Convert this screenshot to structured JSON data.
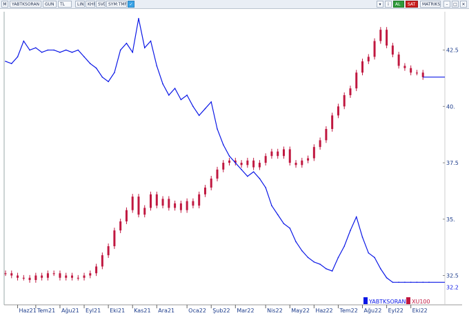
{
  "toolbar": {
    "left_buttons": [
      "M",
      "YABTKSORAN",
      "GUN",
      "TL",
      "LIN",
      "KHN",
      "SVD",
      "SYM:TMP"
    ],
    "right_buttons": [
      "AL",
      "SAT",
      "MATRIKS"
    ]
  },
  "colors": {
    "blue_series": "#0a17e6",
    "red_series": "#c01840",
    "axis_text": "#1a3a8a",
    "grid": "#c9c9c9"
  },
  "chart_data": {
    "type": "line",
    "x_tick_labels": [
      "Haz21",
      "Tem21",
      "Ağu21",
      "Eyl21",
      "Eki21",
      "Kas21",
      "Ara21",
      "Oca22",
      "Şub22",
      "Mar22",
      "Nis22",
      "May22",
      "Haz22",
      "Tem22",
      "Ağu22",
      "Eyl22",
      "Eki22"
    ],
    "y_tick_labels": [
      "32.5",
      "35.",
      "37.5",
      "40.",
      "42.5"
    ],
    "ylim": [
      31.2,
      44.2
    ],
    "last_value_label": "32.2",
    "legend": [
      "YABTKSORAN",
      "XU100"
    ],
    "legend_position": "bottom-right",
    "series": [
      {
        "name": "YABTKSORAN",
        "type": "line",
        "x": [
          0,
          1,
          2,
          3,
          4,
          5,
          6,
          7,
          8,
          9,
          10,
          11,
          12,
          13,
          14,
          15,
          16,
          17,
          18,
          19,
          20,
          21,
          22,
          23,
          24,
          25,
          26,
          27,
          28,
          29,
          30,
          31,
          32,
          33,
          34,
          35,
          36,
          37,
          38,
          39,
          40,
          41,
          42,
          43,
          44,
          45,
          46,
          47,
          48,
          49,
          50,
          51,
          52,
          53,
          54,
          55,
          56,
          57,
          58,
          59,
          60,
          61,
          62,
          63,
          64,
          65,
          66,
          67,
          68,
          69,
          70
        ],
        "values": [
          42.0,
          41.9,
          42.2,
          42.9,
          42.5,
          42.6,
          42.4,
          42.5,
          42.5,
          42.4,
          42.5,
          42.4,
          42.5,
          42.2,
          41.9,
          41.7,
          41.3,
          41.1,
          41.5,
          42.5,
          42.8,
          42.4,
          43.9,
          42.6,
          42.9,
          41.8,
          41.0,
          40.5,
          40.8,
          40.3,
          40.5,
          40.0,
          39.6,
          39.9,
          40.2,
          39.0,
          38.3,
          37.8,
          37.5,
          37.2,
          36.9,
          37.1,
          36.8,
          36.4,
          35.6,
          35.2,
          34.8,
          34.6,
          34.0,
          33.6,
          33.3,
          33.1,
          33.0,
          32.8,
          32.7,
          33.3,
          33.8,
          34.5,
          35.1,
          34.2,
          33.5,
          33.3,
          32.8,
          32.4,
          32.2,
          32.2,
          32.2,
          32.2,
          32.2,
          32.2,
          32.2
        ],
        "date_ticks": [
          2,
          5,
          9,
          13,
          17,
          21,
          25,
          30,
          34,
          38,
          43,
          47,
          51,
          55,
          59,
          63,
          67
        ]
      },
      {
        "name": "XU100",
        "type": "candlestick",
        "x": [
          0,
          1,
          2,
          3,
          4,
          5,
          6,
          7,
          8,
          9,
          10,
          11,
          12,
          13,
          14,
          15,
          16,
          17,
          18,
          19,
          20,
          21,
          22,
          23,
          24,
          25,
          26,
          27,
          28,
          29,
          30,
          31,
          32,
          33,
          34,
          35,
          36,
          37,
          38,
          39,
          40,
          41,
          42,
          43,
          44,
          45,
          46,
          47,
          48,
          49,
          50,
          51,
          52,
          53,
          54,
          55,
          56,
          57,
          58,
          59,
          60,
          61,
          62,
          63,
          64,
          65,
          66,
          67,
          68,
          69
        ],
        "values": [
          32.6,
          32.5,
          32.4,
          32.4,
          32.3,
          32.5,
          32.4,
          32.6,
          32.6,
          32.4,
          32.5,
          32.4,
          32.4,
          32.5,
          32.6,
          32.9,
          33.4,
          33.8,
          34.5,
          34.9,
          35.4,
          36.0,
          35.2,
          35.5,
          36.1,
          35.6,
          35.9,
          35.5,
          35.7,
          35.4,
          35.8,
          35.6,
          36.1,
          36.4,
          36.8,
          37.2,
          37.5,
          37.6,
          37.5,
          37.4,
          37.6,
          37.3,
          37.5,
          37.8,
          38.0,
          37.8,
          38.1,
          37.5,
          37.4,
          37.6,
          37.7,
          38.2,
          38.5,
          39.0,
          39.6,
          40.0,
          40.5,
          40.8,
          41.5,
          42.0,
          42.2,
          42.9,
          43.4,
          42.7,
          42.3,
          41.8,
          41.7,
          41.5,
          41.5,
          41.3
        ]
      }
    ]
  }
}
